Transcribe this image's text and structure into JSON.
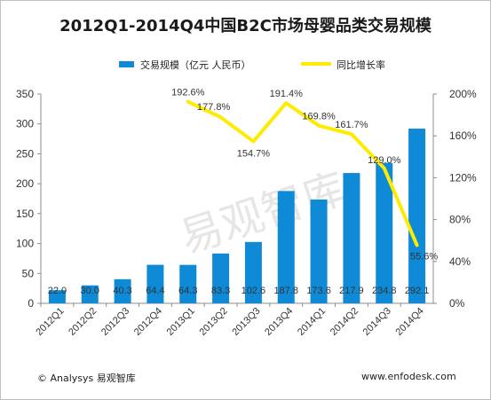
{
  "chart_data": {
    "type": "bar",
    "title": "2012Q1-2014Q4中国B2C市场母婴品类交易规模",
    "categories": [
      "2012Q1",
      "2012Q2",
      "2012Q3",
      "2012Q4",
      "2013Q1",
      "2013Q2",
      "2013Q3",
      "2013Q4",
      "2014Q1",
      "2014Q2",
      "2014Q3",
      "2014Q4"
    ],
    "series": [
      {
        "name": "交易规模（亿元 人民币）",
        "type": "bar",
        "axis": "left",
        "color": "#0e8ad6",
        "values": [
          22.0,
          30.0,
          40.3,
          64.4,
          64.3,
          83.3,
          102.6,
          187.8,
          173.6,
          217.9,
          234.8,
          292.1
        ],
        "labels": [
          "22.0",
          "30.0",
          "40.3",
          "64.4",
          "64.3",
          "83.3",
          "102.6",
          "187.8",
          "173.6",
          "217.9",
          "234.8",
          "292.1"
        ]
      },
      {
        "name": "同比增长率",
        "type": "line",
        "axis": "right",
        "color": "#ffeb00",
        "x": [
          "2013Q1",
          "2013Q2",
          "2013Q3",
          "2013Q4",
          "2014Q1",
          "2014Q2",
          "2014Q3",
          "2014Q4"
        ],
        "values": [
          192.6,
          177.8,
          154.7,
          191.4,
          169.8,
          161.7,
          129.0,
          55.6
        ],
        "labels": [
          "192.6%",
          "177.8%",
          "154.7%",
          "191.4%",
          "169.8%",
          "161.7%",
          "129.0%",
          "55.6%"
        ]
      }
    ],
    "y_left": {
      "min": 0,
      "max": 350,
      "ticks": [
        "0",
        "50",
        "100",
        "150",
        "200",
        "250",
        "300",
        "350"
      ]
    },
    "y_right": {
      "min": 0,
      "max": 200,
      "ticks": [
        "0%",
        "40%",
        "80%",
        "120%",
        "160%",
        "200%"
      ]
    },
    "grid": false,
    "legend_position": "top"
  },
  "watermark": "易观智库",
  "footer": {
    "source": "© Analysys 易观智库",
    "website": "www.enfodesk.com"
  }
}
